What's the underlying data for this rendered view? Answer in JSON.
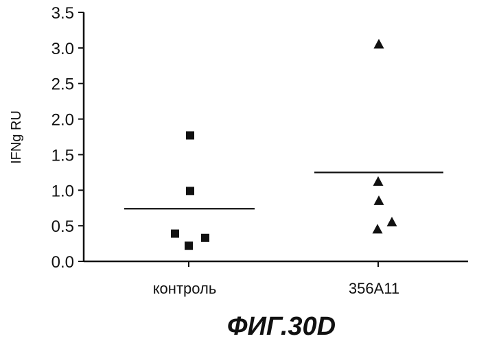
{
  "figure_label": "ФИГ.30D",
  "chart_data": {
    "type": "scatter",
    "ylabel": "IFNg RU",
    "ylim": [
      0.0,
      3.5
    ],
    "yticks": [
      "0.0",
      "0.5",
      "1.0",
      "1.5",
      "2.0",
      "2.5",
      "3.0",
      "3.5"
    ],
    "categories": [
      "контроль",
      "356A11"
    ],
    "grid": false,
    "series": [
      {
        "category": "контроль",
        "marker": "square",
        "values": [
          1.77,
          0.99,
          0.39,
          0.22,
          0.33
        ],
        "mean": 0.74
      },
      {
        "category": "356A11",
        "marker": "triangle",
        "values": [
          3.05,
          1.12,
          0.85,
          0.55,
          0.45
        ],
        "mean": 1.25
      }
    ]
  }
}
